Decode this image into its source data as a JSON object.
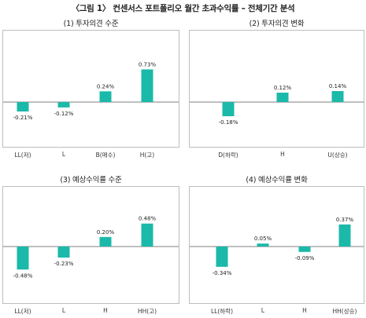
{
  "figure_title": "〈그림 1〉 컨센서스 포트폴리오 월간 초과수익률 – 전체기간 분석",
  "panel_titles": [
    "(1) 투자의견 수준",
    "(2) 투자의견 변화",
    "(3) 예상수익률 수준",
    "(4) 예상수익률 변화"
  ],
  "colors": {
    "bar": "#1bb9a9",
    "zero_line": "#555555",
    "border": "#bdbdbd"
  },
  "chart_data": [
    {
      "type": "bar",
      "title": "(1) 투자의견 수준",
      "categories": [
        "LL(저)",
        "L",
        "B(매수)",
        "H(고)"
      ],
      "values": [
        -0.21,
        -0.12,
        0.24,
        0.73
      ],
      "data_labels": [
        "-0.21%",
        "-0.12%",
        "0.24%",
        "0.73%"
      ],
      "xlabel": "",
      "ylabel": "",
      "grid": false
    },
    {
      "type": "bar",
      "title": "(2) 투자의견 변화",
      "categories": [
        "D(하락)",
        "H",
        "U(상승)"
      ],
      "values": [
        -0.18,
        0.12,
        0.14
      ],
      "data_labels": [
        "-0.18%",
        "0.12%",
        "0.14%"
      ],
      "xlabel": "",
      "ylabel": "",
      "grid": false
    },
    {
      "type": "bar",
      "title": "(3) 예상수익률 수준",
      "categories": [
        "LL(저)",
        "L",
        "H",
        "HH(고)"
      ],
      "values": [
        -0.48,
        -0.23,
        0.2,
        0.48
      ],
      "data_labels": [
        "-0.48%",
        "-0.23%",
        "0.20%",
        "0.48%"
      ],
      "xlabel": "",
      "ylabel": "",
      "grid": false
    },
    {
      "type": "bar",
      "title": "(4) 예상수익률 변화",
      "categories": [
        "LL(하락)",
        "L",
        "H",
        "HH(상승)"
      ],
      "values": [
        -0.34,
        0.05,
        -0.09,
        0.37
      ],
      "data_labels": [
        "-0.34%",
        "0.05%",
        "-0.09%",
        "0.37%"
      ],
      "xlabel": "",
      "ylabel": "",
      "grid": false
    }
  ]
}
